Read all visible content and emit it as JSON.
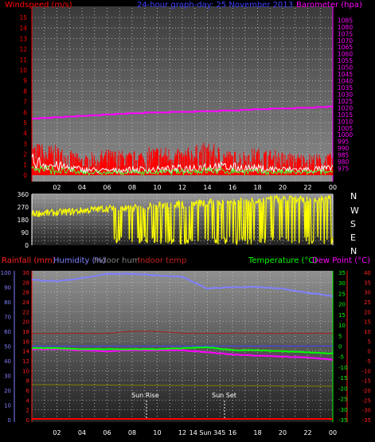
{
  "header": {
    "left": "Windspeed (m/s)",
    "center": "24-hour graph-day:  25 November 2013",
    "right": "Barometer (hpa)"
  },
  "compass": [
    "N",
    "W",
    "S",
    "E",
    "N"
  ],
  "time_ticks": [
    "02",
    "04",
    "06",
    "08",
    "10",
    "12",
    "14",
    "16",
    "18",
    "20",
    "22",
    "00"
  ],
  "sun": {
    "rise": "Sun Rise",
    "set": "Sun Set"
  },
  "sun_time_label": "14 Sun 345",
  "bottom_legend": {
    "rainfall": "Rainfall (mm)",
    "humidity": "Humidity (%)",
    "indoor_hum": "Indoor hum",
    "indoor_temp": "Indoor temp",
    "temperature": "Temperature (°C)",
    "dew": "Dew Point (°C)"
  },
  "colors": {
    "wind_gust": "#ff0000",
    "wind_avg": "#ffffff",
    "wind_low": "#40ff40",
    "barometer": "#ff00ff",
    "wind_dir": "#ffff00",
    "humidity": "#8080ff",
    "indoor_hum": "#606060",
    "indoor_temp": "#a02020",
    "temperature": "#00ff00",
    "dew": "#ff00ff",
    "rain": "#ff0000",
    "olive": "#808000"
  },
  "chart_data": [
    {
      "type": "line",
      "title": "24-hour graph-day:  25 November 2013",
      "x": [
        0,
        2,
        4,
        6,
        8,
        10,
        12,
        14,
        16,
        18,
        20,
        22,
        24
      ],
      "xlabel": "",
      "ylabel": "Windspeed (m/s)",
      "ylim": [
        0,
        15
      ],
      "y2label": "Barometer (hpa)",
      "y2lim": [
        970,
        1087
      ],
      "series": [
        {
          "name": "Barometer (hpa)",
          "axis": "right",
          "values": [
            1012,
            1013,
            1014,
            1015,
            1016,
            1016.5,
            1017,
            1017.5,
            1018,
            1019,
            1019.5,
            1020,
            1021
          ]
        },
        {
          "name": "Gust",
          "axis": "left",
          "values": [
            2.8,
            2.5,
            1.7,
            2.2,
            2.0,
            2.5,
            2.2,
            2.8,
            2.0,
            2.3,
            2.0,
            1.8,
            1.8
          ]
        },
        {
          "name": "Average",
          "axis": "left",
          "values": [
            1.2,
            0.8,
            0.5,
            0.4,
            0.5,
            0.5,
            0.6,
            0.8,
            0.7,
            0.6,
            0.5,
            0.5,
            0.6
          ]
        }
      ],
      "yticks": [
        0,
        1,
        2,
        3,
        4,
        5,
        6,
        7,
        8,
        9,
        10,
        11,
        12,
        13,
        14,
        15
      ],
      "y2ticks": [
        975,
        980,
        985,
        990,
        995,
        1000,
        1005,
        1010,
        1015,
        1020,
        1025,
        1030,
        1035,
        1040,
        1045,
        1050,
        1055,
        1060,
        1065,
        1070,
        1075,
        1080,
        1085
      ],
      "grid": true
    },
    {
      "type": "scatter",
      "ylabel": "",
      "ylim": [
        0,
        360
      ],
      "yticks": [
        0,
        30,
        60,
        90,
        120,
        150,
        180,
        210,
        240,
        270,
        300,
        330,
        360
      ],
      "x": [
        0,
        2,
        4,
        6,
        8,
        10,
        12,
        14,
        16,
        18,
        20,
        22,
        24
      ],
      "series": [
        {
          "name": "Wind direction",
          "values": [
            225,
            230,
            245,
            260,
            265,
            280,
            290,
            300,
            310,
            320,
            330,
            325,
            330
          ]
        }
      ],
      "grid": true
    },
    {
      "type": "line",
      "x": [
        0,
        2,
        4,
        6,
        8,
        10,
        12,
        14,
        16,
        18,
        20,
        22,
        24
      ],
      "ylim_left1": [
        0,
        30
      ],
      "ylim_left2": [
        0,
        100
      ],
      "ylim_right1": [
        -35,
        35
      ],
      "ylim_right2": [
        -35,
        40
      ],
      "yticks_left1": [
        0,
        2,
        4,
        6,
        8,
        10,
        12,
        14,
        16,
        18,
        20,
        22,
        24,
        26,
        28,
        30
      ],
      "yticks_left2": [
        0,
        10,
        20,
        30,
        40,
        50,
        60,
        70,
        80,
        90,
        100
      ],
      "yticks_right1": [
        -35,
        -30,
        -25,
        -20,
        -15,
        -10,
        -5,
        0,
        5,
        10,
        15,
        20,
        25,
        30,
        35
      ],
      "yticks_right2": [
        -35,
        -30,
        -25,
        -20,
        -15,
        -10,
        -5,
        0,
        5,
        10,
        15,
        20,
        25,
        30,
        35,
        40
      ],
      "series": [
        {
          "name": "Humidity (%)",
          "axis": "left2",
          "values": [
            95,
            94,
            96,
            99,
            99,
            98,
            97,
            89,
            90,
            90,
            89,
            86,
            84
          ]
        },
        {
          "name": "Indoor temp",
          "axis": "right2",
          "values": [
            9,
            9,
            9,
            9,
            10,
            10,
            9,
            9,
            9,
            9,
            9,
            9,
            9
          ]
        },
        {
          "name": "Temperature (°C)",
          "axis": "right1",
          "values": [
            -1,
            -1,
            -1.5,
            -1.5,
            -1.5,
            -1.5,
            -1,
            -0.5,
            -2,
            -2,
            -2.5,
            -3,
            -3.5
          ]
        },
        {
          "name": "Dew Point (°C)",
          "axis": "right1",
          "values": [
            -1.5,
            -1.5,
            -2,
            -2.5,
            -2,
            -2,
            -2,
            -3,
            -4,
            -4.5,
            -5,
            -5.5,
            -6.5
          ]
        },
        {
          "name": "Rainfall (mm)",
          "axis": "left1",
          "values": [
            0,
            0,
            0,
            0,
            0,
            0,
            0,
            0,
            0,
            0,
            0,
            0,
            0
          ]
        }
      ],
      "grid": true
    }
  ]
}
